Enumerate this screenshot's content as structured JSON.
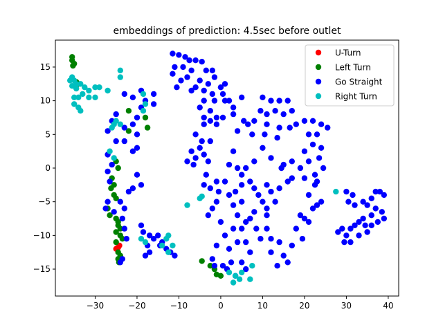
{
  "chart_data": {
    "type": "scatter",
    "title": "embeddings of prediction: 4.5sec before outlet",
    "xlabel": "",
    "ylabel": "",
    "xlim": [
      -39.5,
      42.5
    ],
    "ylim": [
      -19,
      19
    ],
    "xticks": [
      -30,
      -20,
      -10,
      0,
      10,
      20,
      30,
      40
    ],
    "yticks": [
      -15,
      -10,
      -5,
      0,
      5,
      10,
      15
    ],
    "legend_position": "top-right",
    "grid": false,
    "series": [
      {
        "name": "U-Turn",
        "color": "#ff0000",
        "points": [
          [
            -25,
            -12
          ],
          [
            -24.5,
            -11.8
          ],
          [
            -24.2,
            -11.5
          ],
          [
            -24.8,
            -11.9
          ]
        ]
      },
      {
        "name": "Left Turn",
        "color": "#008000",
        "points": [
          [
            -35.5,
            16.5
          ],
          [
            -35.5,
            16
          ],
          [
            -35,
            15.5
          ],
          [
            -35.3,
            15.2
          ],
          [
            -34,
            12.5
          ],
          [
            -34.5,
            12.8
          ],
          [
            -22,
            8.5
          ],
          [
            -18,
            7.5
          ],
          [
            -17.5,
            6
          ],
          [
            -22,
            5.5
          ],
          [
            -25,
            1
          ],
          [
            -24.5,
            0
          ],
          [
            -26,
            -1.5
          ],
          [
            -25.5,
            -2.5
          ],
          [
            -26.2,
            -3
          ],
          [
            -25.5,
            -4
          ],
          [
            -25,
            -4.5
          ],
          [
            -27,
            -6
          ],
          [
            -26.5,
            -7
          ],
          [
            -25,
            -7.5
          ],
          [
            -24.5,
            -8
          ],
          [
            -24.5,
            -8.5
          ],
          [
            -24,
            -9
          ],
          [
            -25,
            -9.5
          ],
          [
            -24,
            -10
          ],
          [
            -23.5,
            -10.5
          ],
          [
            -25,
            -11
          ],
          [
            -24.5,
            -12.5
          ],
          [
            -24.5,
            -13.5
          ],
          [
            -24,
            -13
          ],
          [
            -24.3,
            -14
          ],
          [
            -4.5,
            -13.8
          ],
          [
            -2.5,
            -14.5
          ],
          [
            -1.5,
            -15
          ],
          [
            -1,
            -15.8
          ],
          [
            0,
            -16
          ]
        ]
      },
      {
        "name": "Go Straight",
        "color": "#0000ff",
        "points": [
          [
            -11.5,
            17
          ],
          [
            -10,
            16.8
          ],
          [
            -8.5,
            16.5
          ],
          [
            -7.5,
            16
          ],
          [
            -6,
            16
          ],
          [
            -4.5,
            15.8
          ],
          [
            -3.5,
            14.5
          ],
          [
            -2,
            14.5
          ],
          [
            -1.5,
            13.5
          ],
          [
            -11,
            15
          ],
          [
            -9,
            15
          ],
          [
            -7,
            14.5
          ],
          [
            -11.5,
            14
          ],
          [
            -9.5,
            13
          ],
          [
            -8,
            13.5
          ],
          [
            -5,
            13
          ],
          [
            -3,
            12.5
          ],
          [
            -10.5,
            12
          ],
          [
            -7,
            11.5
          ],
          [
            -6,
            12
          ],
          [
            -4,
            11.5
          ],
          [
            -2,
            11
          ],
          [
            0,
            12
          ],
          [
            1,
            12.5
          ],
          [
            0.5,
            11
          ],
          [
            -1.5,
            10
          ],
          [
            -4,
            10
          ],
          [
            -5,
            9
          ],
          [
            -2.5,
            8.5
          ],
          [
            -4,
            7.5
          ],
          [
            -2.5,
            7
          ],
          [
            -1,
            7.5
          ],
          [
            1,
            10
          ],
          [
            2,
            10
          ],
          [
            3,
            9
          ],
          [
            5,
            10.5
          ],
          [
            3,
            8
          ],
          [
            0.5,
            7.5
          ],
          [
            -1,
            6.5
          ],
          [
            10,
            10.5
          ],
          [
            12,
            10
          ],
          [
            14,
            10
          ],
          [
            16,
            10
          ],
          [
            9.5,
            8.5
          ],
          [
            11,
            8
          ],
          [
            13,
            8.5
          ],
          [
            15,
            8
          ],
          [
            17,
            8.5
          ],
          [
            8,
            7
          ],
          [
            11,
            6.5
          ],
          [
            14,
            6
          ],
          [
            16.5,
            6
          ],
          [
            18,
            6.5
          ],
          [
            5.5,
            7
          ],
          [
            6.5,
            6.5
          ],
          [
            4,
            5.5
          ],
          [
            7.5,
            5
          ],
          [
            10.5,
            5
          ],
          [
            13.5,
            4.5
          ],
          [
            20,
            7
          ],
          [
            22,
            7
          ],
          [
            24,
            6.5
          ],
          [
            25.5,
            6
          ],
          [
            21,
            5
          ],
          [
            23,
            5
          ],
          [
            22,
            3.5
          ],
          [
            24,
            3
          ],
          [
            20,
            2.5
          ],
          [
            23.5,
            1.5
          ],
          [
            21,
            1
          ],
          [
            24.5,
            0
          ],
          [
            22.5,
            -1
          ],
          [
            20,
            -1.5
          ],
          [
            23,
            -2
          ],
          [
            19,
            0
          ],
          [
            17,
            1
          ],
          [
            15,
            0.5
          ],
          [
            17,
            -1.5
          ],
          [
            -4,
            6.5
          ],
          [
            -6,
            5
          ],
          [
            -4.5,
            4
          ],
          [
            -2.5,
            4
          ],
          [
            -5,
            3
          ],
          [
            -7,
            2.5
          ],
          [
            -4,
            2
          ],
          [
            -6,
            1.5
          ],
          [
            -8,
            1
          ],
          [
            -3,
            1
          ],
          [
            -6.5,
            0.5
          ],
          [
            -3.5,
            -1
          ],
          [
            -1,
            -2
          ],
          [
            -4,
            -2.5
          ],
          [
            -2.5,
            -3
          ],
          [
            -0.5,
            -3.5
          ],
          [
            1,
            -2
          ],
          [
            2,
            -4
          ],
          [
            3.5,
            -3.5
          ],
          [
            5,
            -2.5
          ],
          [
            3,
            -5.5
          ],
          [
            5,
            -5
          ],
          [
            4,
            0
          ],
          [
            6,
            0
          ],
          [
            3,
            2.5
          ],
          [
            2,
            0.5
          ],
          [
            5,
            -1
          ],
          [
            7,
            -2
          ],
          [
            8,
            -3
          ],
          [
            9,
            -4
          ],
          [
            10,
            -5
          ],
          [
            11,
            -6
          ],
          [
            8,
            1
          ],
          [
            11,
            -2.5
          ],
          [
            12,
            -3.5
          ],
          [
            13,
            -5
          ],
          [
            14.5,
            0
          ],
          [
            16,
            -2
          ],
          [
            14,
            -3
          ],
          [
            10,
            3
          ],
          [
            12,
            1.5
          ],
          [
            4,
            -7
          ],
          [
            6,
            -8
          ],
          [
            5,
            -9
          ],
          [
            3,
            -9
          ],
          [
            1,
            -10
          ],
          [
            -1,
            -11.5
          ],
          [
            2,
            -12
          ],
          [
            4,
            -11
          ],
          [
            6,
            -11
          ],
          [
            7,
            -12.5
          ],
          [
            8.5,
            -9
          ],
          [
            9.5,
            -10.5
          ],
          [
            7,
            -7.5
          ],
          [
            8,
            -6.5
          ],
          [
            11,
            -7
          ],
          [
            11,
            -9
          ],
          [
            12,
            -10.5
          ],
          [
            12,
            -12.5
          ],
          [
            14,
            -11
          ],
          [
            15,
            -13
          ],
          [
            13.5,
            -14.5
          ],
          [
            16,
            -14
          ],
          [
            17,
            -11.5
          ],
          [
            18,
            -9
          ],
          [
            19,
            -7
          ],
          [
            20,
            -7.5
          ],
          [
            21,
            -8
          ],
          [
            19.5,
            -10.5
          ],
          [
            22,
            -6
          ],
          [
            23,
            -5.5
          ],
          [
            24,
            -5
          ],
          [
            21,
            -4
          ],
          [
            22.5,
            -2.5
          ],
          [
            -1,
            -5
          ],
          [
            -2,
            -6
          ],
          [
            -3,
            -7
          ],
          [
            0,
            -8
          ],
          [
            -2,
            -13.5
          ],
          [
            -1.5,
            -14.5
          ],
          [
            0.5,
            -14.5
          ],
          [
            1.5,
            -15
          ],
          [
            2.5,
            -14
          ],
          [
            5,
            -14
          ],
          [
            6,
            -15
          ],
          [
            3.5,
            -16
          ],
          [
            -23,
            11
          ],
          [
            -21,
            10.5
          ],
          [
            -19,
            11.5
          ],
          [
            -18,
            10
          ],
          [
            -16,
            11
          ],
          [
            -16,
            9.5
          ],
          [
            -19,
            9
          ],
          [
            -20,
            7.5
          ],
          [
            -21,
            6.5
          ],
          [
            -23,
            6
          ],
          [
            -25,
            8
          ],
          [
            -26,
            7
          ],
          [
            -27,
            5.5
          ],
          [
            -25,
            4
          ],
          [
            -23,
            4
          ],
          [
            -20,
            5
          ],
          [
            -20,
            3
          ],
          [
            -21,
            2.5
          ],
          [
            -27,
            2
          ],
          [
            -26,
            0.5
          ],
          [
            -27,
            -0.5
          ],
          [
            -26.5,
            -2
          ],
          [
            -20,
            -1
          ],
          [
            -19,
            -2.5
          ],
          [
            -21,
            -3
          ],
          [
            -22,
            -3.5
          ],
          [
            -27,
            -5
          ],
          [
            -27.5,
            -6
          ],
          [
            -25.5,
            -6.5
          ],
          [
            -24,
            -5
          ],
          [
            -23,
            -6
          ],
          [
            -23.5,
            -7.5
          ],
          [
            -23,
            -9
          ],
          [
            -22.5,
            -10.5
          ],
          [
            -24,
            -14
          ],
          [
            -23.5,
            -13.5
          ],
          [
            -19,
            -8.5
          ],
          [
            -18.5,
            -9.5
          ],
          [
            -17,
            -10
          ],
          [
            -16,
            -10.5
          ],
          [
            -15,
            -10
          ],
          [
            -17.5,
            -11.5
          ],
          [
            -14,
            -11
          ],
          [
            -13,
            -12
          ],
          [
            -12,
            -12.5
          ],
          [
            -11,
            -13
          ],
          [
            -14.5,
            -11.5
          ],
          [
            -18,
            -13
          ],
          [
            -17,
            -12.5
          ],
          [
            30,
            -3.5
          ],
          [
            31.5,
            -4
          ],
          [
            30.5,
            -5
          ],
          [
            32,
            -5.5
          ],
          [
            34,
            -5
          ],
          [
            35,
            -5.5
          ],
          [
            36,
            -4.5
          ],
          [
            37,
            -3.5
          ],
          [
            38,
            -3.5
          ],
          [
            39,
            -4
          ],
          [
            37,
            -6
          ],
          [
            38.5,
            -6.5
          ],
          [
            39,
            -7.5
          ],
          [
            36,
            -7
          ],
          [
            34,
            -7.5
          ],
          [
            33,
            -8
          ],
          [
            32,
            -8.5
          ],
          [
            31,
            -9
          ],
          [
            29,
            -9
          ],
          [
            28,
            -9.5
          ],
          [
            30,
            -10
          ],
          [
            29.5,
            -11
          ],
          [
            31,
            -11
          ],
          [
            33,
            -10
          ],
          [
            35,
            -9.5
          ],
          [
            36,
            -8.5
          ],
          [
            37.5,
            -8
          ],
          [
            34.5,
            -8.5
          ]
        ]
      },
      {
        "name": "Right Turn",
        "color": "#00bfbf",
        "points": [
          [
            -36,
            13
          ],
          [
            -35.5,
            13.5
          ],
          [
            -35,
            13
          ],
          [
            -34.5,
            12.5
          ],
          [
            -33.5,
            12.5
          ],
          [
            -35.5,
            12.2
          ],
          [
            -34.5,
            11.8
          ],
          [
            -32.5,
            12
          ],
          [
            -31.5,
            11.5
          ],
          [
            -30,
            12
          ],
          [
            -29,
            12
          ],
          [
            -27,
            11.5
          ],
          [
            -33,
            11
          ],
          [
            -35,
            10.5
          ],
          [
            -34,
            10.5
          ],
          [
            -31.5,
            10.5
          ],
          [
            -30,
            10.5
          ],
          [
            -35,
            9.5
          ],
          [
            -34,
            9
          ],
          [
            -33.5,
            8.5
          ],
          [
            -24,
            14.5
          ],
          [
            -24,
            13.5
          ],
          [
            -18.5,
            11
          ],
          [
            -18,
            9.5
          ],
          [
            -18.5,
            8.5
          ],
          [
            -25,
            7
          ],
          [
            -25.5,
            6.5
          ],
          [
            -24,
            6.5
          ],
          [
            -26,
            6
          ],
          [
            -26.5,
            2.5
          ],
          [
            -25.5,
            1.5
          ],
          [
            -19,
            -10.5
          ],
          [
            -18,
            -11
          ],
          [
            -13,
            -10.5
          ],
          [
            -12.5,
            -10
          ],
          [
            -11.5,
            -11.5
          ],
          [
            -12.5,
            -12.5
          ],
          [
            -14,
            -11.5
          ],
          [
            -8,
            -5.5
          ],
          [
            -5,
            -4.5
          ],
          [
            -4.5,
            -4.2
          ],
          [
            2,
            -15.5
          ],
          [
            3.5,
            -16
          ],
          [
            4.5,
            -16.5
          ],
          [
            5,
            -15.5
          ],
          [
            7.5,
            -14.5
          ],
          [
            7,
            -16.5
          ],
          [
            3,
            -17
          ],
          [
            27.5,
            -3.5
          ]
        ]
      }
    ]
  }
}
